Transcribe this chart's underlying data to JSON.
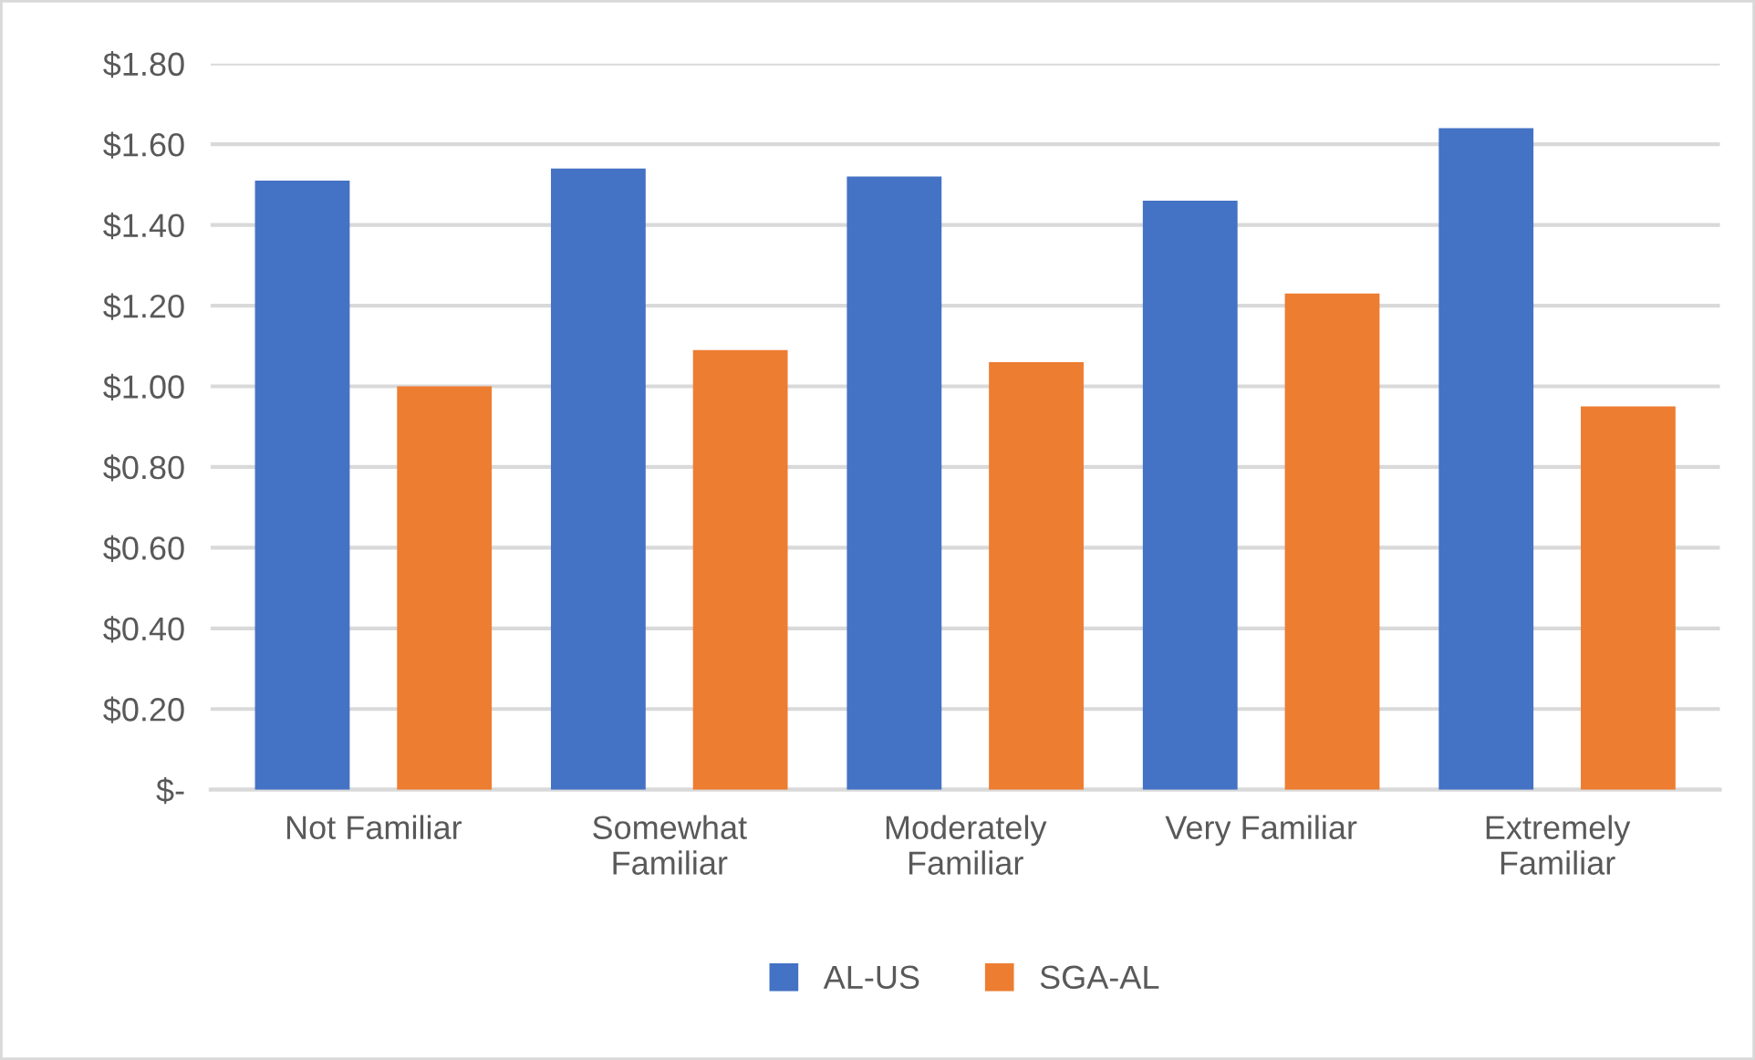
{
  "chart_data": {
    "type": "bar",
    "categories": [
      "Not Familiar",
      "Somewhat\nFamiliar",
      "Moderately\nFamiliar",
      "Very Familiar",
      "Extremely\nFamiliar"
    ],
    "series": [
      {
        "name": "AL-US",
        "color": "#4472c4",
        "values": [
          1.51,
          1.54,
          1.52,
          1.46,
          1.64
        ]
      },
      {
        "name": "SGA-AL",
        "color": "#ed7d31",
        "values": [
          1.0,
          1.09,
          1.06,
          1.23,
          0.95
        ]
      }
    ],
    "ylim": [
      0,
      1.8
    ],
    "yticks": [
      {
        "value": 0,
        "label": "$-"
      },
      {
        "value": 0.2,
        "label": "$0.20"
      },
      {
        "value": 0.4,
        "label": "$0.40"
      },
      {
        "value": 0.6,
        "label": "$0.60"
      },
      {
        "value": 0.8,
        "label": "$0.80"
      },
      {
        "value": 1.0,
        "label": "$1.00"
      },
      {
        "value": 1.2,
        "label": "$1.20"
      },
      {
        "value": 1.4,
        "label": "$1.40"
      },
      {
        "value": 1.6,
        "label": "$1.60"
      },
      {
        "value": 1.8,
        "label": "$1.80"
      }
    ],
    "grid": "y",
    "legend": "bottom"
  }
}
